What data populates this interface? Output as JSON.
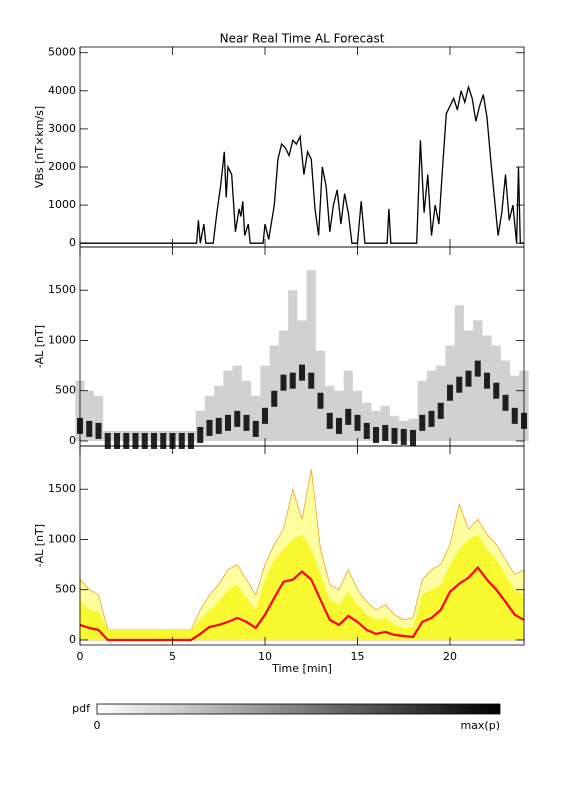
{
  "chart_data": [
    {
      "type": "line",
      "title": "Near Real Time AL Forecast",
      "ylabel": "VBs [nT×km/s]",
      "color": "#000000",
      "x": [
        0,
        6.3,
        6.4,
        6.5,
        6.7,
        6.8,
        7.2,
        7.4,
        7.6,
        7.8,
        7.9,
        8.0,
        8.2,
        8.4,
        8.6,
        8.7,
        8.8,
        8.9,
        9.1,
        9.2,
        9.9,
        10.0,
        10.2,
        10.5,
        10.7,
        10.9,
        11.1,
        11.3,
        11.5,
        11.7,
        11.9,
        12.1,
        12.3,
        12.5,
        12.7,
        12.9,
        13.1,
        13.3,
        13.5,
        13.7,
        13.9,
        14.1,
        14.3,
        14.5,
        14.7,
        15.0,
        15.2,
        15.4,
        16.6,
        16.7,
        16.8,
        18.2,
        18.4,
        18.6,
        18.8,
        19.0,
        19.2,
        19.4,
        19.6,
        19.8,
        20.0,
        20.2,
        20.4,
        20.6,
        20.8,
        21.0,
        21.2,
        21.4,
        21.6,
        21.8,
        22.0,
        22.2,
        22.4,
        22.6,
        22.8,
        23.0,
        23.2,
        23.4,
        23.6,
        23.7,
        23.8,
        24
      ],
      "values": [
        0,
        0,
        600,
        0,
        500,
        0,
        0,
        800,
        1500,
        2400,
        1200,
        2000,
        1800,
        300,
        900,
        700,
        1100,
        200,
        500,
        0,
        0,
        500,
        100,
        1000,
        2200,
        2600,
        2500,
        2300,
        2700,
        2600,
        2800,
        1800,
        2400,
        2200,
        900,
        200,
        2000,
        1500,
        300,
        1000,
        1400,
        500,
        1300,
        800,
        0,
        0,
        1100,
        0,
        0,
        900,
        0,
        0,
        2700,
        800,
        1800,
        200,
        1000,
        500,
        2000,
        3400,
        3600,
        3800,
        3500,
        4000,
        3700,
        4100,
        3800,
        3200,
        3600,
        3900,
        3300,
        2200,
        1200,
        200,
        800,
        1800,
        600,
        1000,
        0,
        2000,
        0,
        0
      ],
      "xlim": [
        0,
        24
      ],
      "xticks": [
        0,
        5,
        10,
        15,
        20
      ],
      "ylim": [
        -100,
        5150
      ],
      "yticks": [
        0,
        1000,
        2000,
        3000,
        4000,
        5000
      ]
    },
    {
      "type": "density",
      "ylabel": "-AL [nT]",
      "x": [
        0,
        0.5,
        1,
        1.5,
        2,
        2.5,
        3,
        3.5,
        4,
        4.5,
        5,
        5.5,
        6,
        6.5,
        7,
        7.5,
        8,
        8.5,
        9,
        9.5,
        10,
        10.5,
        11,
        11.5,
        12,
        12.5,
        13,
        13.5,
        14,
        14.5,
        15,
        15.5,
        16,
        16.5,
        17,
        17.5,
        18,
        18.5,
        19,
        19.5,
        20,
        20.5,
        21,
        21.5,
        22,
        22.5,
        23,
        23.5,
        24
      ],
      "high": [
        600,
        500,
        450,
        100,
        100,
        100,
        100,
        100,
        100,
        100,
        100,
        100,
        100,
        300,
        450,
        550,
        700,
        750,
        600,
        450,
        750,
        950,
        1100,
        1500,
        1200,
        1700,
        900,
        550,
        500,
        700,
        500,
        380,
        300,
        350,
        250,
        200,
        220,
        600,
        700,
        750,
        950,
        1350,
        1100,
        1200,
        1050,
        950,
        800,
        650,
        700
      ],
      "peak": [
        150,
        120,
        100,
        0,
        0,
        0,
        0,
        0,
        0,
        0,
        0,
        0,
        0,
        60,
        130,
        150,
        180,
        220,
        180,
        120,
        250,
        420,
        580,
        600,
        680,
        600,
        400,
        200,
        150,
        240,
        180,
        100,
        60,
        80,
        50,
        40,
        30,
        180,
        220,
        300,
        480,
        560,
        620,
        720,
        600,
        500,
        380,
        250,
        200
      ],
      "xlim": [
        0,
        24
      ],
      "xticks": [
        0,
        5,
        10,
        15,
        20
      ],
      "ylim": [
        -50,
        1930
      ],
      "yticks": [
        0,
        500,
        1000,
        1500
      ]
    },
    {
      "type": "band",
      "ylabel": "-AL [nT]",
      "xlabel": "Time [min]",
      "x": [
        0,
        0.5,
        1,
        1.5,
        2,
        2.5,
        3,
        3.5,
        4,
        4.5,
        5,
        5.5,
        6,
        6.5,
        7,
        7.5,
        8,
        8.5,
        9,
        9.5,
        10,
        10.5,
        11,
        11.5,
        12,
        12.5,
        13,
        13.5,
        14,
        14.5,
        15,
        15.5,
        16,
        16.5,
        17,
        17.5,
        18,
        18.5,
        19,
        19.5,
        20,
        20.5,
        21,
        21.5,
        22,
        22.5,
        23,
        23.5,
        24
      ],
      "series": [
        {
          "color": "#ffffa0",
          "line": "#f0a030",
          "values": [
            600,
            500,
            450,
            100,
            100,
            100,
            100,
            100,
            100,
            100,
            100,
            100,
            100,
            300,
            450,
            550,
            700,
            750,
            600,
            450,
            750,
            950,
            1100,
            1500,
            1200,
            1700,
            900,
            550,
            500,
            700,
            500,
            380,
            300,
            350,
            250,
            200,
            220,
            600,
            700,
            750,
            950,
            1350,
            1100,
            1200,
            1050,
            950,
            800,
            650,
            700
          ]
        },
        {
          "color": "#f8f830",
          "values": [
            400,
            300,
            280,
            100,
            100,
            100,
            100,
            100,
            100,
            100,
            100,
            100,
            100,
            200,
            300,
            380,
            500,
            550,
            420,
            300,
            600,
            800,
            900,
            1000,
            1050,
            900,
            650,
            400,
            350,
            480,
            350,
            250,
            200,
            220,
            150,
            120,
            120,
            450,
            500,
            550,
            750,
            900,
            1000,
            1050,
            900,
            800,
            650,
            500,
            450
          ]
        },
        {
          "color": "#ff0000",
          "values": [
            150,
            120,
            100,
            0,
            0,
            0,
            0,
            0,
            0,
            0,
            0,
            0,
            0,
            60,
            130,
            150,
            180,
            220,
            180,
            120,
            250,
            420,
            580,
            600,
            680,
            600,
            400,
            200,
            150,
            240,
            180,
            100,
            60,
            80,
            50,
            40,
            30,
            180,
            220,
            300,
            480,
            560,
            620,
            720,
            600,
            500,
            380,
            250,
            200
          ]
        }
      ],
      "xlim": [
        0,
        24
      ],
      "xticks": [
        0,
        5,
        10,
        15,
        20
      ],
      "ylim": [
        -50,
        1930
      ],
      "yticks": [
        0,
        500,
        1000,
        1500
      ]
    }
  ],
  "colorbar": {
    "label": "pdf",
    "min_label": "0",
    "max_label": "max(p)"
  }
}
